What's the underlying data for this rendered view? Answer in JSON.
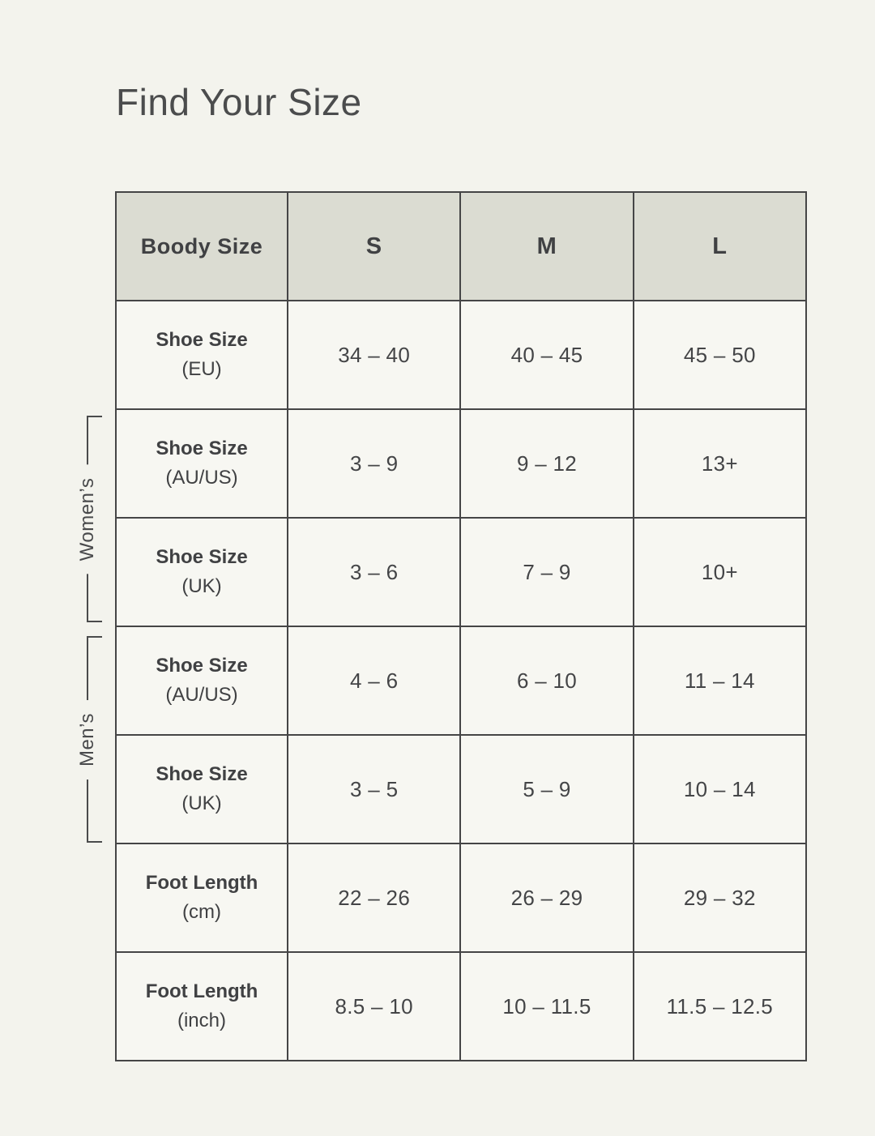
{
  "title": "Find Your Size",
  "table": {
    "header": {
      "corner_label": "Boody Size",
      "columns": [
        "S",
        "M",
        "L"
      ]
    },
    "rows": [
      {
        "label": "Shoe Size",
        "unit": "(EU)",
        "values": [
          "34 – 40",
          "40 – 45",
          "45 – 50"
        ]
      },
      {
        "label": "Shoe Size",
        "unit": "(AU/US)",
        "values": [
          "3 – 9",
          "9 – 12",
          "13+"
        ]
      },
      {
        "label": "Shoe Size",
        "unit": "(UK)",
        "values": [
          "3 – 6",
          "7 – 9",
          "10+"
        ]
      },
      {
        "label": "Shoe Size",
        "unit": "(AU/US)",
        "values": [
          "4 – 6",
          "6 – 10",
          "11 – 14"
        ]
      },
      {
        "label": "Shoe Size",
        "unit": "(UK)",
        "values": [
          "3 – 5",
          "5 – 9",
          "10 – 14"
        ]
      },
      {
        "label": "Foot Length",
        "unit": "(cm)",
        "values": [
          "22 – 26",
          "26 – 29",
          "29 – 32"
        ]
      },
      {
        "label": "Foot Length",
        "unit": "(inch)",
        "values": [
          "8.5 – 10",
          "10 – 11.5",
          "11.5 – 12.5"
        ]
      }
    ],
    "groups": [
      {
        "label": "Women’s"
      },
      {
        "label": "Men’s"
      }
    ]
  },
  "colors": {
    "page_bg": "#F3F3ED",
    "header_bg": "#DBDCD2",
    "cell_bg": "#F7F7F2",
    "border": "#454546",
    "text": "#414244"
  },
  "chart_data": {
    "type": "table",
    "title": "Find Your Size",
    "columns": [
      "Boody Size",
      "S",
      "M",
      "L"
    ],
    "rows": [
      [
        "Shoe Size (EU)",
        "34 – 40",
        "40 – 45",
        "45 – 50"
      ],
      [
        "Women’s Shoe Size (AU/US)",
        "3 – 9",
        "9 – 12",
        "13+"
      ],
      [
        "Women’s Shoe Size (UK)",
        "3 – 6",
        "7 – 9",
        "10+"
      ],
      [
        "Men’s Shoe Size (AU/US)",
        "4 – 6",
        "6 – 10",
        "11 – 14"
      ],
      [
        "Men’s Shoe Size (UK)",
        "3 – 5",
        "5 – 9",
        "10 – 14"
      ],
      [
        "Foot Length (cm)",
        "22 – 26",
        "26 – 29",
        "29 – 32"
      ],
      [
        "Foot Length (inch)",
        "8.5 – 10",
        "10 – 11.5",
        "11.5 – 12.5"
      ]
    ]
  }
}
